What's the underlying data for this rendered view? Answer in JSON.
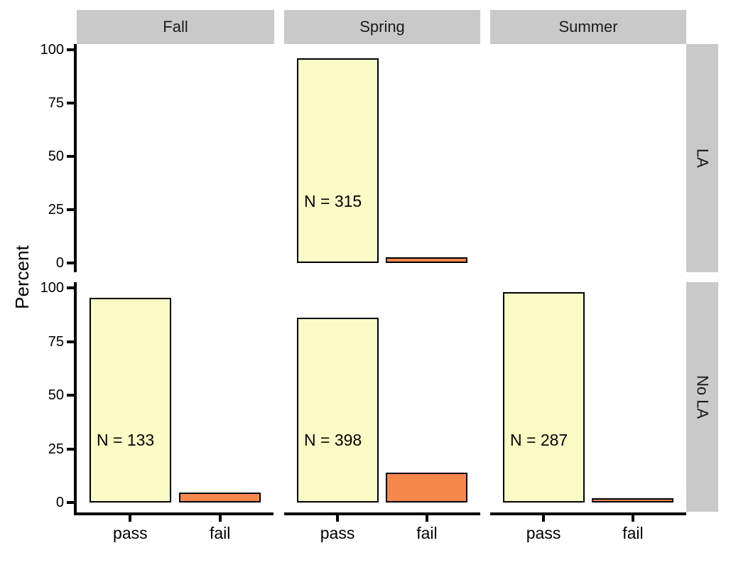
{
  "chart_data": {
    "type": "bar",
    "title": "",
    "xlabel": "",
    "ylabel": "Percent",
    "x_categories": [
      "pass",
      "fail"
    ],
    "y_axis": {
      "ticks": [
        100,
        75,
        50,
        25,
        0
      ],
      "range": [
        0,
        100
      ]
    },
    "facet_cols": [
      "Fall",
      "Spring",
      "Summer"
    ],
    "facet_rows": [
      "LA",
      "No LA"
    ],
    "series_colors": [
      "#FBFBC6",
      "#F6874D"
    ],
    "bar_outline_color": "#000000",
    "strip_bg": "#C9C9C9",
    "axis_color": "#000000",
    "legend": "none",
    "grid": "off",
    "panels": [
      {
        "row": "LA",
        "col": "Fall",
        "values": null,
        "n_label": null
      },
      {
        "row": "LA",
        "col": "Spring",
        "values": [
          96,
          2.5
        ],
        "n_label": "N = 315"
      },
      {
        "row": "LA",
        "col": "Summer",
        "values": null,
        "n_label": null
      },
      {
        "row": "No LA",
        "col": "Fall",
        "values": [
          95.5,
          4.5
        ],
        "n_label": "N = 133"
      },
      {
        "row": "No LA",
        "col": "Spring",
        "values": [
          86,
          14
        ],
        "n_label": "N = 398"
      },
      {
        "row": "No LA",
        "col": "Summer",
        "values": [
          98,
          2
        ],
        "n_label": "N = 287"
      }
    ]
  }
}
